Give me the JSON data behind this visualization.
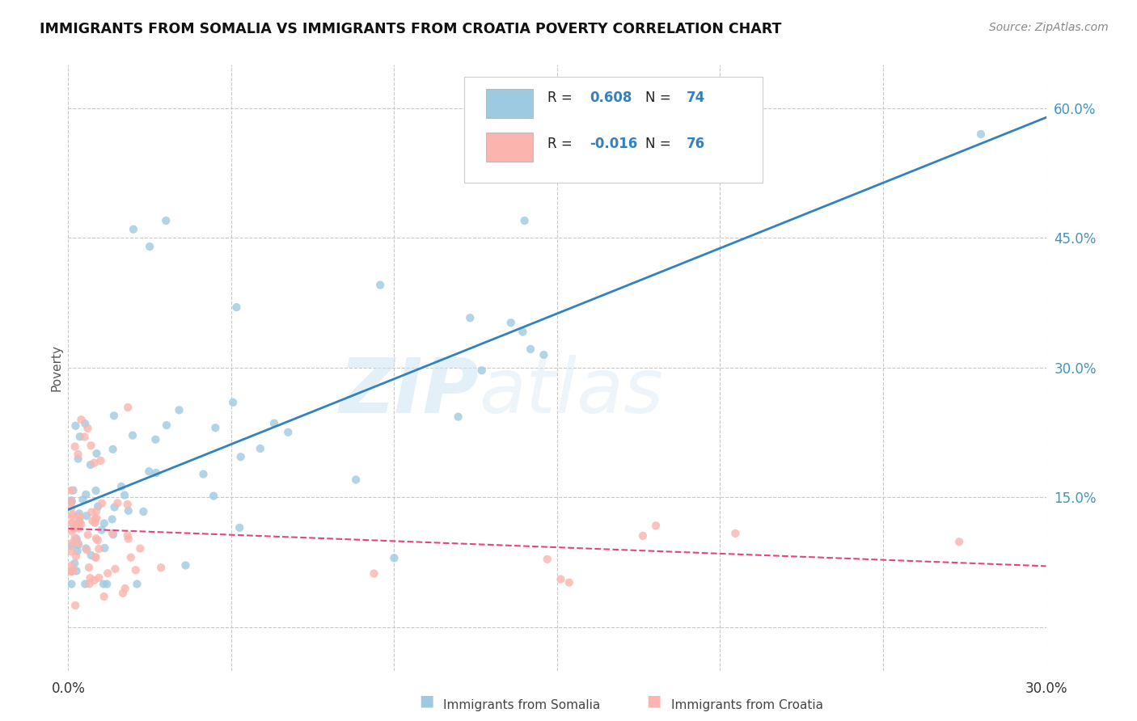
{
  "title": "IMMIGRANTS FROM SOMALIA VS IMMIGRANTS FROM CROATIA POVERTY CORRELATION CHART",
  "source": "Source: ZipAtlas.com",
  "ylabel": "Poverty",
  "xlim": [
    0.0,
    0.3
  ],
  "ylim": [
    -0.05,
    0.65
  ],
  "x_ticks": [
    0.0,
    0.05,
    0.1,
    0.15,
    0.2,
    0.25,
    0.3
  ],
  "y_ticks": [
    0.0,
    0.15,
    0.3,
    0.45,
    0.6
  ],
  "r_somalia": 0.608,
  "n_somalia": 74,
  "r_croatia": -0.016,
  "n_croatia": 76,
  "somalia_color": "#9ecae1",
  "croatia_color": "#fbb4ae",
  "somalia_line_color": "#3182bd",
  "croatia_line_color": "#e6457a",
  "grid_color": "#c8c8c8",
  "background_color": "#ffffff",
  "watermark_zip": "ZIP",
  "watermark_atlas": "atlas"
}
